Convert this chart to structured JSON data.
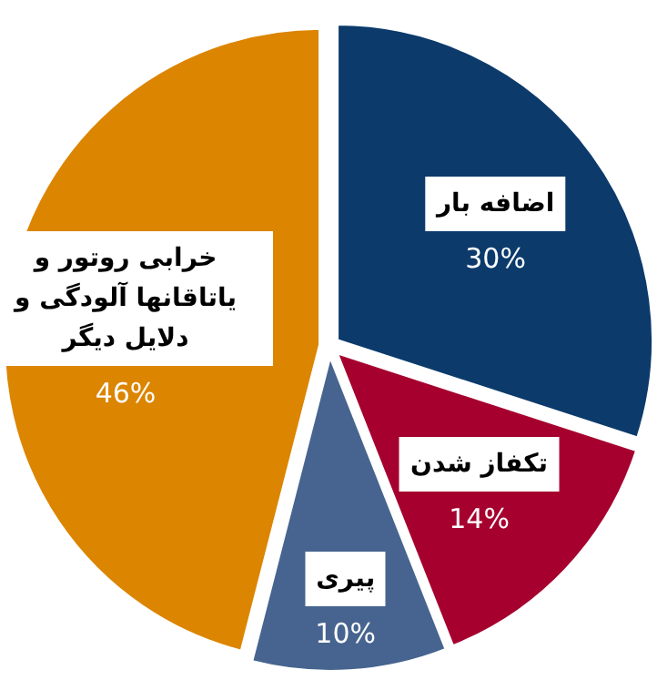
{
  "chart_data": {
    "type": "pie",
    "categories": [
      "اضافه بار",
      "تکفاز شدن",
      "پیری",
      "خرابی روتور و یاتاقانها آلودگی و دلایل دیگر"
    ],
    "values": [
      30,
      14,
      10,
      46
    ],
    "colors": [
      "#0b3a6b",
      "#a6002f",
      "#46648f",
      "#dc8500"
    ],
    "value_labels": [
      "30%",
      "14%",
      "10%",
      "46%"
    ]
  }
}
